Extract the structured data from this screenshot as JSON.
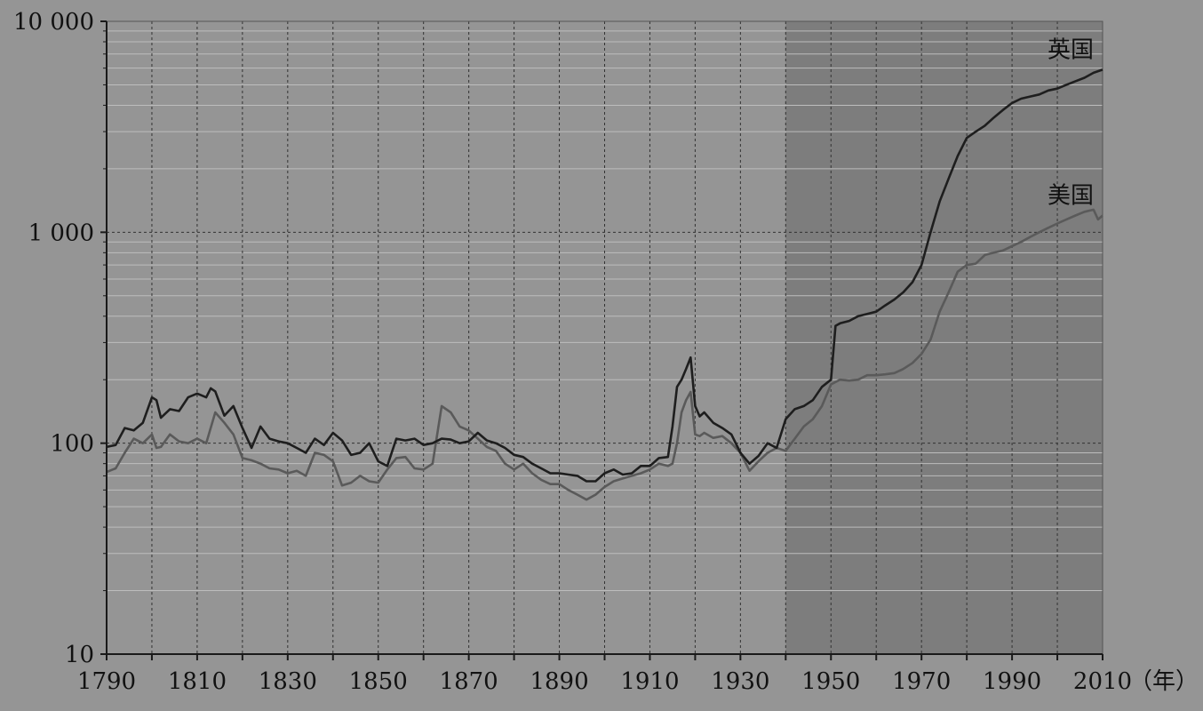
{
  "chart_data": {
    "type": "line",
    "title": "",
    "xlabel": "（年）",
    "ylabel": "",
    "y_scale": "log",
    "xlim": [
      1790,
      2010
    ],
    "ylim": [
      10,
      10000
    ],
    "x_ticks": [
      1790,
      1810,
      1830,
      1850,
      1870,
      1890,
      1910,
      1930,
      1950,
      1970,
      1990,
      2010
    ],
    "x_tick_labels": [
      "1790",
      "1810",
      "1830",
      "1850",
      "1870",
      "1890",
      "1910",
      "1930",
      "1950",
      "1970",
      "1990",
      "2010"
    ],
    "y_ticks": [
      10,
      100,
      1000,
      10000
    ],
    "y_tick_labels": [
      "10",
      "100",
      "1 000",
      "10 000"
    ],
    "grid": "dashed",
    "shaded_region": [
      1940,
      2010
    ],
    "colors": {
      "background": "#959595",
      "shaded": "#7d7d7d",
      "uk": "#1e1e1e",
      "us": "#5a5a5a",
      "axis": "#1a1a1a",
      "grid_minor": "#bdbdbd",
      "grid_major": "#333333"
    },
    "series": [
      {
        "name": "英国",
        "x": [
          1790,
          1792,
          1794,
          1796,
          1798,
          1800,
          1801,
          1802,
          1804,
          1806,
          1808,
          1810,
          1812,
          1813,
          1814,
          1816,
          1818,
          1820,
          1822,
          1824,
          1826,
          1828,
          1830,
          1832,
          1834,
          1836,
          1838,
          1840,
          1842,
          1844,
          1846,
          1848,
          1850,
          1852,
          1854,
          1856,
          1858,
          1860,
          1862,
          1864,
          1866,
          1868,
          1870,
          1872,
          1874,
          1876,
          1878,
          1880,
          1882,
          1884,
          1886,
          1888,
          1890,
          1892,
          1894,
          1896,
          1898,
          1900,
          1902,
          1904,
          1906,
          1908,
          1910,
          1912,
          1914,
          1915,
          1916,
          1917,
          1918,
          1919,
          1920,
          1921,
          1922,
          1924,
          1926,
          1928,
          1930,
          1932,
          1934,
          1936,
          1938,
          1940,
          1942,
          1944,
          1946,
          1948,
          1950,
          1951,
          1952,
          1954,
          1956,
          1958,
          1960,
          1962,
          1964,
          1966,
          1968,
          1970,
          1972,
          1974,
          1976,
          1978,
          1980,
          1982,
          1984,
          1986,
          1988,
          1990,
          1992,
          1994,
          1996,
          1998,
          2000,
          2002,
          2004,
          2006,
          2008,
          2010
        ],
        "values": [
          96,
          98,
          118,
          115,
          125,
          165,
          160,
          132,
          145,
          142,
          165,
          172,
          165,
          182,
          176,
          135,
          150,
          118,
          95,
          120,
          105,
          102,
          100,
          95,
          90,
          105,
          98,
          112,
          103,
          88,
          90,
          100,
          82,
          78,
          105,
          103,
          105,
          98,
          100,
          105,
          104,
          100,
          102,
          112,
          103,
          100,
          95,
          88,
          86,
          80,
          76,
          72,
          72,
          71,
          70,
          66,
          66,
          72,
          75,
          71,
          72,
          78,
          78,
          85,
          86,
          120,
          185,
          200,
          225,
          255,
          150,
          134,
          140,
          125,
          118,
          110,
          90,
          80,
          87,
          100,
          95,
          130,
          145,
          150,
          160,
          185,
          200,
          360,
          370,
          380,
          400,
          410,
          420,
          450,
          480,
          520,
          580,
          700,
          1000,
          1400,
          1800,
          2300,
          2800,
          3000,
          3200,
          3500,
          3800,
          4100,
          4300,
          4400,
          4500,
          4700,
          4800,
          5000,
          5200,
          5400,
          5700,
          5900
        ]
      },
      {
        "name": "美国",
        "x": [
          1790,
          1792,
          1794,
          1796,
          1798,
          1800,
          1801,
          1802,
          1804,
          1806,
          1808,
          1810,
          1812,
          1814,
          1816,
          1818,
          1820,
          1822,
          1824,
          1826,
          1828,
          1830,
          1832,
          1834,
          1836,
          1838,
          1840,
          1842,
          1844,
          1846,
          1848,
          1850,
          1852,
          1854,
          1856,
          1858,
          1860,
          1862,
          1864,
          1866,
          1868,
          1870,
          1872,
          1874,
          1876,
          1878,
          1880,
          1882,
          1884,
          1886,
          1888,
          1890,
          1892,
          1894,
          1896,
          1898,
          1900,
          1902,
          1904,
          1906,
          1908,
          1910,
          1912,
          1914,
          1915,
          1916,
          1917,
          1918,
          1919,
          1920,
          1921,
          1922,
          1924,
          1926,
          1928,
          1930,
          1932,
          1934,
          1936,
          1938,
          1940,
          1942,
          1944,
          1946,
          1948,
          1950,
          1952,
          1954,
          1956,
          1958,
          1960,
          1962,
          1964,
          1966,
          1968,
          1970,
          1972,
          1974,
          1976,
          1978,
          1980,
          1982,
          1984,
          1986,
          1988,
          1990,
          1992,
          1994,
          1996,
          1998,
          2000,
          2002,
          2004,
          2006,
          2008,
          2009,
          2010
        ],
        "values": [
          73,
          76,
          90,
          105,
          100,
          110,
          95,
          96,
          110,
          102,
          100,
          105,
          100,
          140,
          125,
          110,
          85,
          83,
          80,
          76,
          75,
          72,
          74,
          70,
          90,
          88,
          82,
          63,
          65,
          70,
          66,
          65,
          75,
          85,
          86,
          76,
          75,
          80,
          150,
          140,
          120,
          115,
          105,
          96,
          92,
          80,
          75,
          80,
          72,
          67,
          64,
          64,
          60,
          57,
          54,
          57,
          62,
          66,
          68,
          70,
          72,
          75,
          80,
          78,
          80,
          100,
          140,
          160,
          175,
          110,
          108,
          112,
          106,
          108,
          100,
          90,
          74,
          82,
          90,
          95,
          92,
          105,
          120,
          130,
          150,
          190,
          200,
          198,
          200,
          210,
          210,
          212,
          215,
          225,
          240,
          265,
          310,
          420,
          520,
          650,
          700,
          710,
          780,
          800,
          820,
          860,
          900,
          950,
          1000,
          1050,
          1100,
          1150,
          1200,
          1250,
          1280,
          1150,
          1200
        ]
      }
    ],
    "annotations": [
      {
        "text": "英国",
        "series": "英国"
      },
      {
        "text": "美国",
        "series": "美国"
      }
    ]
  }
}
